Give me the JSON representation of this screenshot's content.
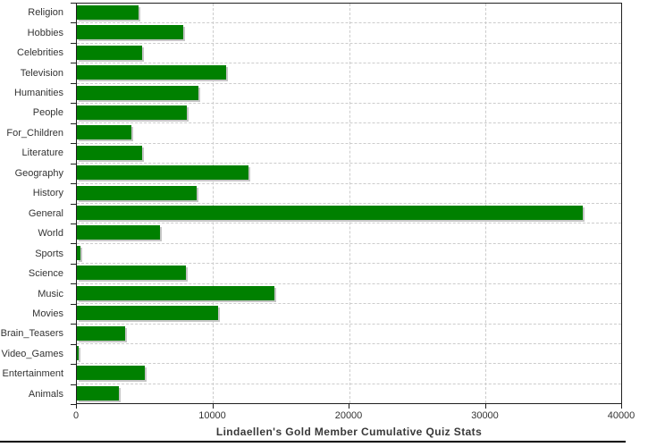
{
  "title": "Lindaellen's Gold Member Cumulative Quiz Stats",
  "colors": {
    "bar": "#008000",
    "bar_shadow": "#c6c6c6",
    "gridline": "#cccccc",
    "axis": "#1f1f1f",
    "label": "#333333",
    "title": "#383838",
    "background": "#ffffff"
  },
  "chart_data": {
    "type": "bar",
    "orientation": "horizontal",
    "title": "Lindaellen's Gold Member Cumulative Quiz Stats",
    "xlabel": "",
    "ylabel": "",
    "grid": "dashed",
    "legend": false,
    "xlim": [
      0,
      40000
    ],
    "xticks": [
      0,
      10000,
      20000,
      30000,
      40000
    ],
    "xtick_labels": [
      "0",
      "10000",
      "20000",
      "30000",
      "40000"
    ],
    "categories": [
      "Religion",
      "Hobbies",
      "Celebrities",
      "Television",
      "Humanities",
      "People",
      "For_Children",
      "Literature",
      "Geography",
      "History",
      "General",
      "World",
      "Sports",
      "Science",
      "Music",
      "Movies",
      "Brain_Teasers",
      "Video_Games",
      "Entertainment",
      "Animals"
    ],
    "values": [
      4550,
      7800,
      4800,
      11000,
      8900,
      8100,
      4000,
      4800,
      12600,
      8800,
      37200,
      6100,
      250,
      8000,
      14500,
      10400,
      3550,
      150,
      5000,
      3100
    ]
  }
}
